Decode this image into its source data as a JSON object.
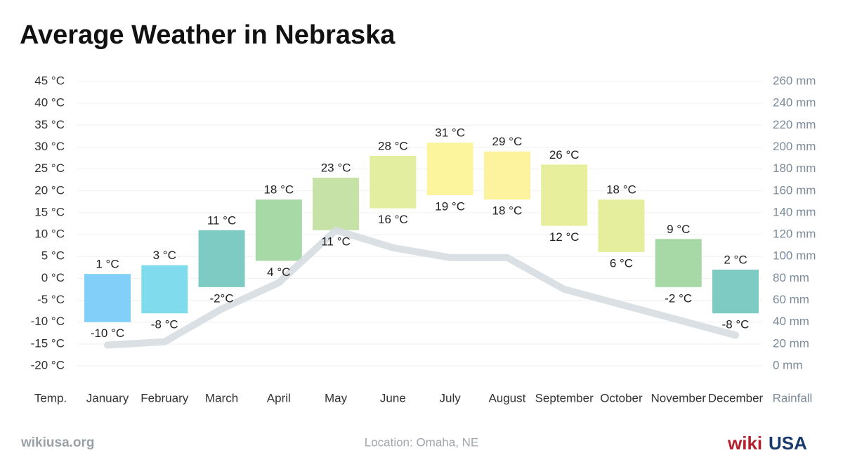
{
  "chart_data": {
    "type": "range_bar",
    "title": "Average Weather in Nebraska",
    "ylabel": "Temp.",
    "y2label": "Rainfall",
    "categories": [
      "January",
      "February",
      "March",
      "April",
      "May",
      "June",
      "July",
      "August",
      "September",
      "October",
      "November",
      "December"
    ],
    "low": [
      -10,
      -8,
      -2,
      4,
      11,
      16,
      19,
      18,
      12,
      6,
      -2,
      -8
    ],
    "high": [
      1,
      3,
      11,
      18,
      23,
      28,
      31,
      29,
      26,
      18,
      9,
      2
    ],
    "low_labels": [
      "-10 °C",
      "-8 °C",
      "-2°C",
      "4 °C",
      "11 °C",
      "16 °C",
      "19 °C",
      "18 °C",
      "12 °C",
      "6 °C",
      "-2 °C",
      "-8 °C"
    ],
    "high_labels": [
      "1 °C",
      "3 °C",
      "11 °C",
      "18 °C",
      "23 °C",
      "28 °C",
      "31 °C",
      "29 °C",
      "26 °C",
      "18 °C",
      "9 °C",
      "2 °C"
    ],
    "colors": [
      "#82d0fa",
      "#80dcec",
      "#7ecbc3",
      "#a6d9a6",
      "#c6e2a6",
      "#e3eea0",
      "#fdf59e",
      "#fdf29e",
      "#e8ef9c",
      "#e5ee9c",
      "#a6d9a6",
      "#7ecbc3"
    ],
    "rainfall": {
      "values": [
        19,
        22,
        52,
        76,
        124,
        108,
        99,
        99,
        70,
        56,
        42,
        28
      ],
      "color": "#d6dde1",
      "axis": "y2"
    },
    "ylim": [
      -20,
      45
    ],
    "yticks": [
      {
        "value": -20,
        "label": "-20 °C"
      },
      {
        "value": -15,
        "label": "-15 °C"
      },
      {
        "value": -10,
        "label": "-10 °C"
      },
      {
        "value": -5,
        "label": "-5 °C"
      },
      {
        "value": 0,
        "label": "0 °C"
      },
      {
        "value": 5,
        "label": "5 °C"
      },
      {
        "value": 10,
        "label": "10 °C"
      },
      {
        "value": 15,
        "label": "15 °C"
      },
      {
        "value": 20,
        "label": "20 °C"
      },
      {
        "value": 25,
        "label": "25 °C"
      },
      {
        "value": 30,
        "label": "30 °C"
      },
      {
        "value": 35,
        "label": "35 °C"
      },
      {
        "value": 40,
        "label": "40 °C"
      },
      {
        "value": 45,
        "label": "45 °C"
      }
    ],
    "y2lim": [
      0,
      260
    ],
    "y2ticks": [
      {
        "value": 0,
        "label": "0 mm"
      },
      {
        "value": 20,
        "label": "20 mm"
      },
      {
        "value": 40,
        "label": "40 mm"
      },
      {
        "value": 60,
        "label": "60 mm"
      },
      {
        "value": 80,
        "label": "80 mm"
      },
      {
        "value": 100,
        "label": "100 mm"
      },
      {
        "value": 120,
        "label": "120 mm"
      },
      {
        "value": 140,
        "label": "140 mm"
      },
      {
        "value": 160,
        "label": "160 mm"
      },
      {
        "value": 180,
        "label": "180 mm"
      },
      {
        "value": 200,
        "label": "200 mm"
      },
      {
        "value": 220,
        "label": "220 mm"
      },
      {
        "value": 240,
        "label": "240 mm"
      },
      {
        "value": 260,
        "label": "260 mm"
      }
    ],
    "grid": true,
    "source": "wikiusa.org",
    "location": "Location: Omaha, NE",
    "logo": [
      "wiki",
      "USA"
    ]
  }
}
